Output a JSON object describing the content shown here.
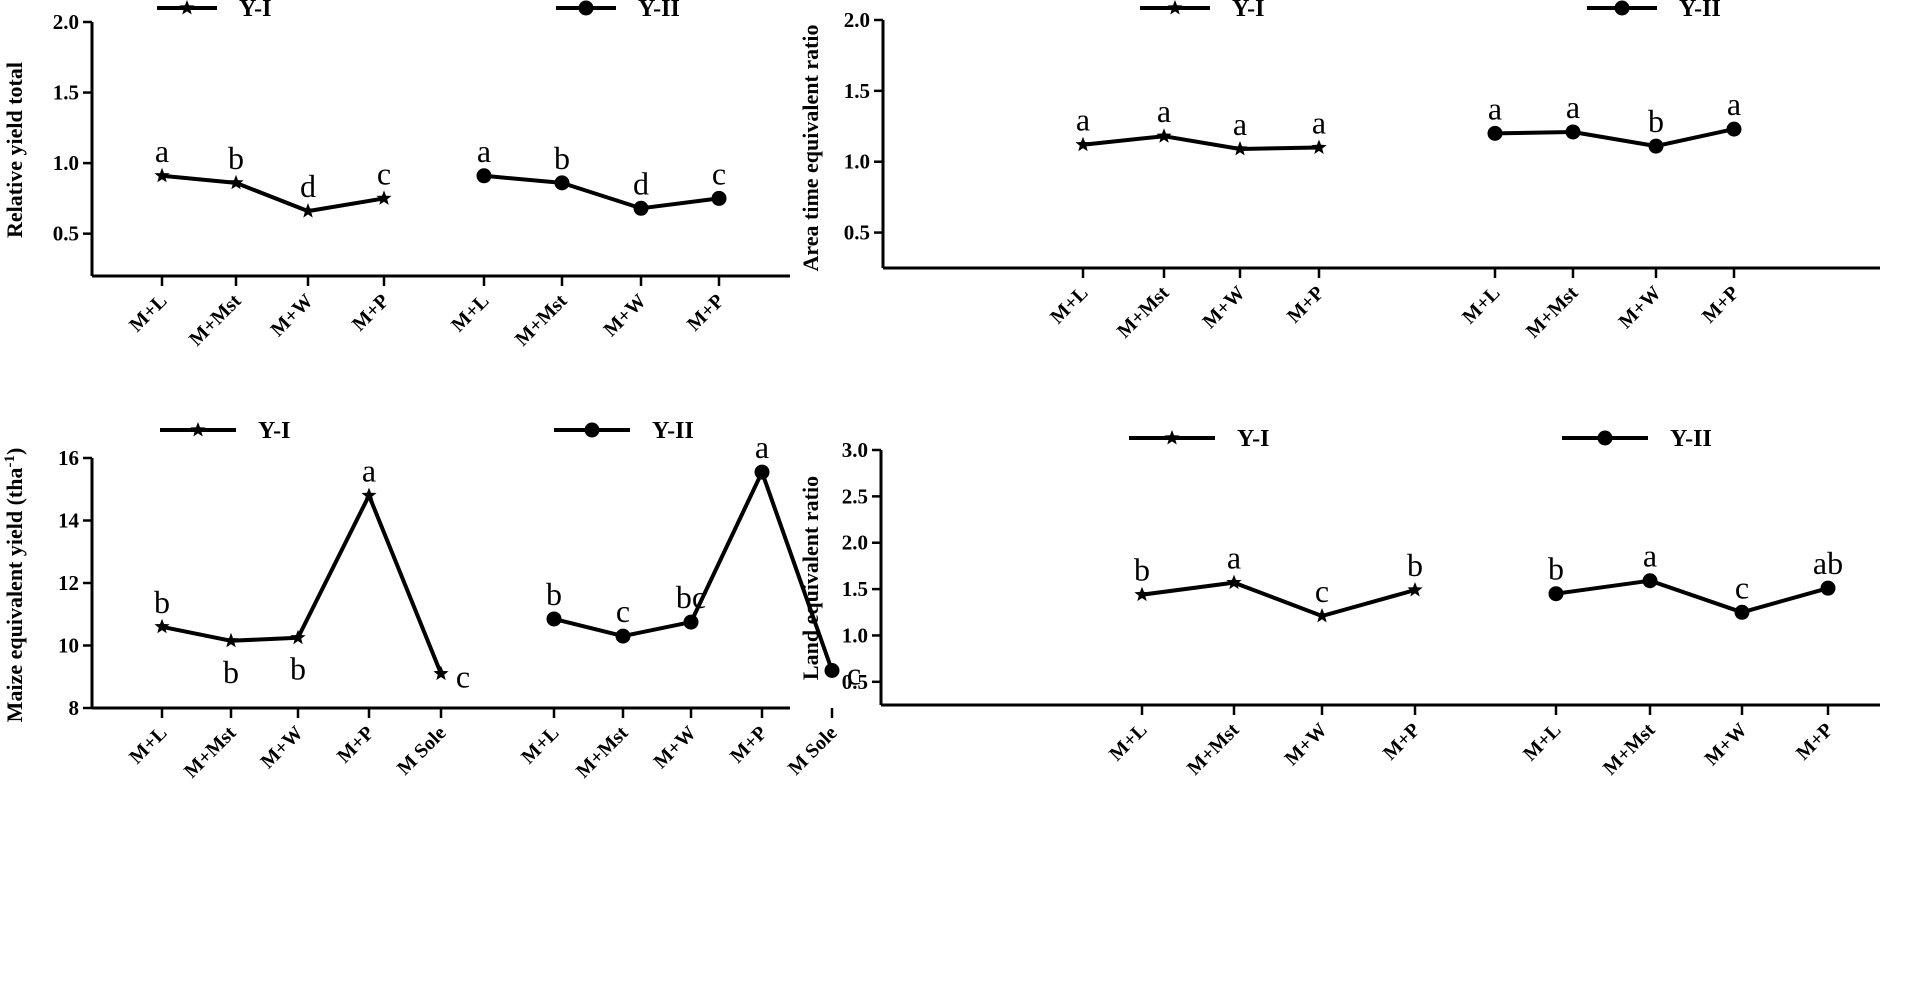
{
  "chart_data": [
    {
      "type": "line",
      "ylabel": "Relative yield total",
      "ylim": [
        0.2,
        2.0
      ],
      "yticks": [
        0.5,
        1.0,
        1.5,
        2.0
      ],
      "ytick_labels": [
        "0.5",
        "1.0",
        "1.5",
        "2.0"
      ],
      "legend": [
        "Y-I",
        "Y-II"
      ],
      "series": [
        {
          "name": "Y-I",
          "marker": "star",
          "categories": [
            "M+L",
            "M+Mst",
            "M+W",
            "M+P"
          ],
          "values": [
            0.91,
            0.86,
            0.66,
            0.75
          ],
          "letters": [
            "a",
            "b",
            "d",
            "c"
          ]
        },
        {
          "name": "Y-II",
          "marker": "circle",
          "categories": [
            "M+L",
            "M+Mst",
            "M+W",
            "M+P"
          ],
          "values": [
            0.91,
            0.86,
            0.68,
            0.75
          ],
          "letters": [
            "a",
            "b",
            "d",
            "c"
          ]
        }
      ]
    },
    {
      "type": "line",
      "ylabel": "Area time equivalent ratio",
      "ylim": [
        0.25,
        2.0
      ],
      "yticks": [
        0.5,
        1.0,
        1.5,
        2.0
      ],
      "ytick_labels": [
        "0.5",
        "1.0",
        "1.5",
        "2.0"
      ],
      "legend": [
        "Y-I",
        "Y-II"
      ],
      "series": [
        {
          "name": "Y-I",
          "marker": "star",
          "categories": [
            "M+L",
            "M+Mst",
            "M+W",
            "M+P"
          ],
          "values": [
            1.12,
            1.18,
            1.09,
            1.1
          ],
          "letters": [
            "a",
            "a",
            "a",
            "a"
          ]
        },
        {
          "name": "Y-II",
          "marker": "circle",
          "categories": [
            "M+L",
            "M+Mst",
            "M+W",
            "M+P"
          ],
          "values": [
            1.2,
            1.21,
            1.11,
            1.23
          ],
          "letters": [
            "a",
            "a",
            "b",
            "a"
          ]
        }
      ]
    },
    {
      "type": "line",
      "ylabel": "Maize equivalent yield (tha",
      "ylabel_sup": "-1",
      "ylabel_end": ")",
      "ylim": [
        8,
        16
      ],
      "yticks": [
        8,
        10,
        12,
        14,
        16
      ],
      "ytick_labels": [
        "8",
        "10",
        "12",
        "14",
        "16"
      ],
      "legend": [
        "Y-I",
        "Y-II"
      ],
      "series": [
        {
          "name": "Y-I",
          "marker": "star",
          "categories": [
            "M+L",
            "M+Mst",
            "M+W",
            "M+P",
            "M Sole"
          ],
          "values": [
            10.6,
            10.15,
            10.25,
            14.8,
            9.1
          ],
          "letters": [
            "b",
            "b",
            "b",
            "a",
            "c"
          ]
        },
        {
          "name": "Y-II",
          "marker": "circle",
          "categories": [
            "M+L",
            "M+Mst",
            "M+W",
            "M+P",
            "M Sole"
          ],
          "values": [
            10.85,
            10.3,
            10.75,
            15.55,
            9.2
          ],
          "letters": [
            "b",
            "c",
            "bc",
            "a",
            "c"
          ]
        }
      ]
    },
    {
      "type": "line",
      "ylabel": "Land equivalent ratio",
      "ylim": [
        0.25,
        3.0
      ],
      "yticks": [
        0.5,
        1.0,
        1.5,
        2.0,
        2.5,
        3.0
      ],
      "ytick_labels": [
        "0.5",
        "1.0",
        "1.5",
        "2.0",
        "2.5",
        "3.0"
      ],
      "legend": [
        "Y-I",
        "Y-II"
      ],
      "series": [
        {
          "name": "Y-I",
          "marker": "star",
          "categories": [
            "M+L",
            "M+Mst",
            "M+W",
            "M+P"
          ],
          "values": [
            1.44,
            1.57,
            1.21,
            1.49
          ],
          "letters": [
            "b",
            "a",
            "c",
            "b"
          ]
        },
        {
          "name": "Y-II",
          "marker": "circle",
          "categories": [
            "M+L",
            "M+Mst",
            "M+W",
            "M+P"
          ],
          "values": [
            1.45,
            1.59,
            1.25,
            1.51
          ],
          "letters": [
            "b",
            "a",
            "c",
            "ab"
          ]
        }
      ]
    }
  ]
}
